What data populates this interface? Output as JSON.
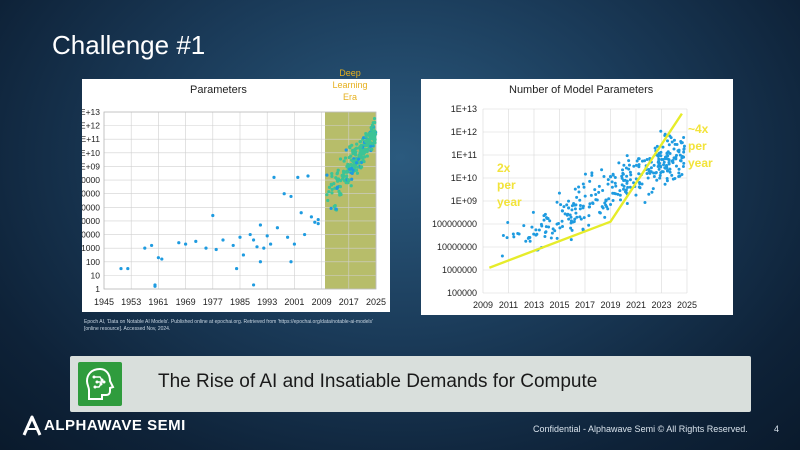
{
  "slide": {
    "title": "Challenge #1",
    "banner_text": "The Rise of AI and Insatiable Demands for Compute",
    "citation": "Epoch AI, 'Data on Notable AI Models'. Published online at epochai.org. Retrieved from 'https://epochai.org/data/notable-ai-models' [online resource]. Accessed Nov, 2024.",
    "footer": "Confidential -  Alphawave Semi © All Rights Reserved.",
    "page_number": "4",
    "logo_text": "ALPHAWAVE SEMI",
    "banner_icon": "head-circuit-icon",
    "logo_icon": "alphawave-logo-icon"
  },
  "colors": {
    "accent_green": "#2f9c3d",
    "point_blue": "#1e9be0",
    "point_teal": "#3cc496",
    "era_band": "#b7bd6a",
    "trend_yellow": "#e6ec2a",
    "annotation_yellow": "#f2e33a",
    "deep_learning_label": "#e6b01f"
  },
  "chart_data": [
    {
      "type": "scatter",
      "title": "Parameters",
      "xlabel": "",
      "ylabel": "",
      "y_scale": "log10",
      "xlim": [
        1945,
        2025
      ],
      "ylim_log10": [
        0,
        13
      ],
      "x_ticks": [
        "1945",
        "1953",
        "1961",
        "1969",
        "1977",
        "1985",
        "1993",
        "2001",
        "2009",
        "2017",
        "2025"
      ],
      "y_ticks": [
        "1",
        "10",
        "100",
        "1000",
        "10000",
        "100000",
        "1000000",
        "10000000",
        "100000000",
        "1E+09",
        "1E+10",
        "1E+11",
        "1E+12",
        "1E+13"
      ],
      "era_band": {
        "label": "Deep Learning Era",
        "label_lines": [
          "Deep",
          "Learning",
          "Era"
        ],
        "x_start": 2010,
        "x_end": 2025
      },
      "points": [
        [
          1950,
          1.5
        ],
        [
          1952,
          1.5
        ],
        [
          1957,
          3.0
        ],
        [
          1959,
          3.2
        ],
        [
          1960,
          0.3
        ],
        [
          1960,
          0.2
        ],
        [
          1961,
          2.3
        ],
        [
          1962,
          2.2
        ],
        [
          1967,
          3.4
        ],
        [
          1969,
          3.3
        ],
        [
          1972,
          3.5
        ],
        [
          1975,
          3.0
        ],
        [
          1977,
          5.4
        ],
        [
          1978,
          2.9
        ],
        [
          1980,
          3.6
        ],
        [
          1983,
          3.2
        ],
        [
          1984,
          1.5
        ],
        [
          1985,
          3.8
        ],
        [
          1986,
          2.5
        ],
        [
          1988,
          4.0
        ],
        [
          1989,
          3.6
        ],
        [
          1989,
          0.3
        ],
        [
          1990,
          3.1
        ],
        [
          1991,
          4.7
        ],
        [
          1991,
          2.0
        ],
        [
          1992,
          3.0
        ],
        [
          1993,
          3.9
        ],
        [
          1994,
          3.3
        ],
        [
          1995,
          8.2
        ],
        [
          1996,
          4.5
        ],
        [
          1998,
          7.0
        ],
        [
          1999,
          3.8
        ],
        [
          2000,
          2.0
        ],
        [
          2000,
          6.8
        ],
        [
          2001,
          3.3
        ],
        [
          2002,
          8.2
        ],
        [
          2003,
          5.6
        ],
        [
          2004,
          4.0
        ],
        [
          2005,
          8.3
        ],
        [
          2006,
          5.3
        ],
        [
          2007,
          4.9
        ],
        [
          2008,
          5.1
        ],
        [
          2008,
          4.8
        ]
      ],
      "dl_era_cloud": {
        "x_range": [
          2010,
          2025
        ],
        "y_log10_center_start": 6.5,
        "y_log10_center_end": 11.5,
        "spread_log10": 1.8,
        "count": 260
      }
    },
    {
      "type": "scatter",
      "title": "Number of Model Parameters",
      "xlabel": "",
      "ylabel": "",
      "y_scale": "log10",
      "xlim": [
        2009,
        2025
      ],
      "ylim_log10": [
        5,
        13
      ],
      "x_ticks": [
        "2009",
        "2011",
        "2013",
        "2015",
        "2017",
        "2019",
        "2021",
        "2023",
        "2025"
      ],
      "y_ticks": [
        "100000",
        "1000000",
        "10000000",
        "100000000",
        "1E+09",
        "1E+10",
        "1E+11",
        "1E+12",
        "1E+13"
      ],
      "trend_line": {
        "points": [
          [
            2009.5,
            6.1
          ],
          [
            2019,
            8.1
          ],
          [
            2024.6,
            12.8
          ]
        ]
      },
      "annotations": [
        {
          "lines": [
            "2x",
            "per",
            "year"
          ],
          "x": 2009.7,
          "y_log10": 10.1
        },
        {
          "lines": [
            "~4x",
            "per",
            "year"
          ],
          "x": 2025.2,
          "y_log10": 12.1
        }
      ],
      "cloud": {
        "x_range": [
          2010,
          2024.8
        ],
        "y_log10_center_start": 6.8,
        "y_log10_center_end": 11.2,
        "spread_log10": 1.9,
        "count": 330
      }
    }
  ]
}
